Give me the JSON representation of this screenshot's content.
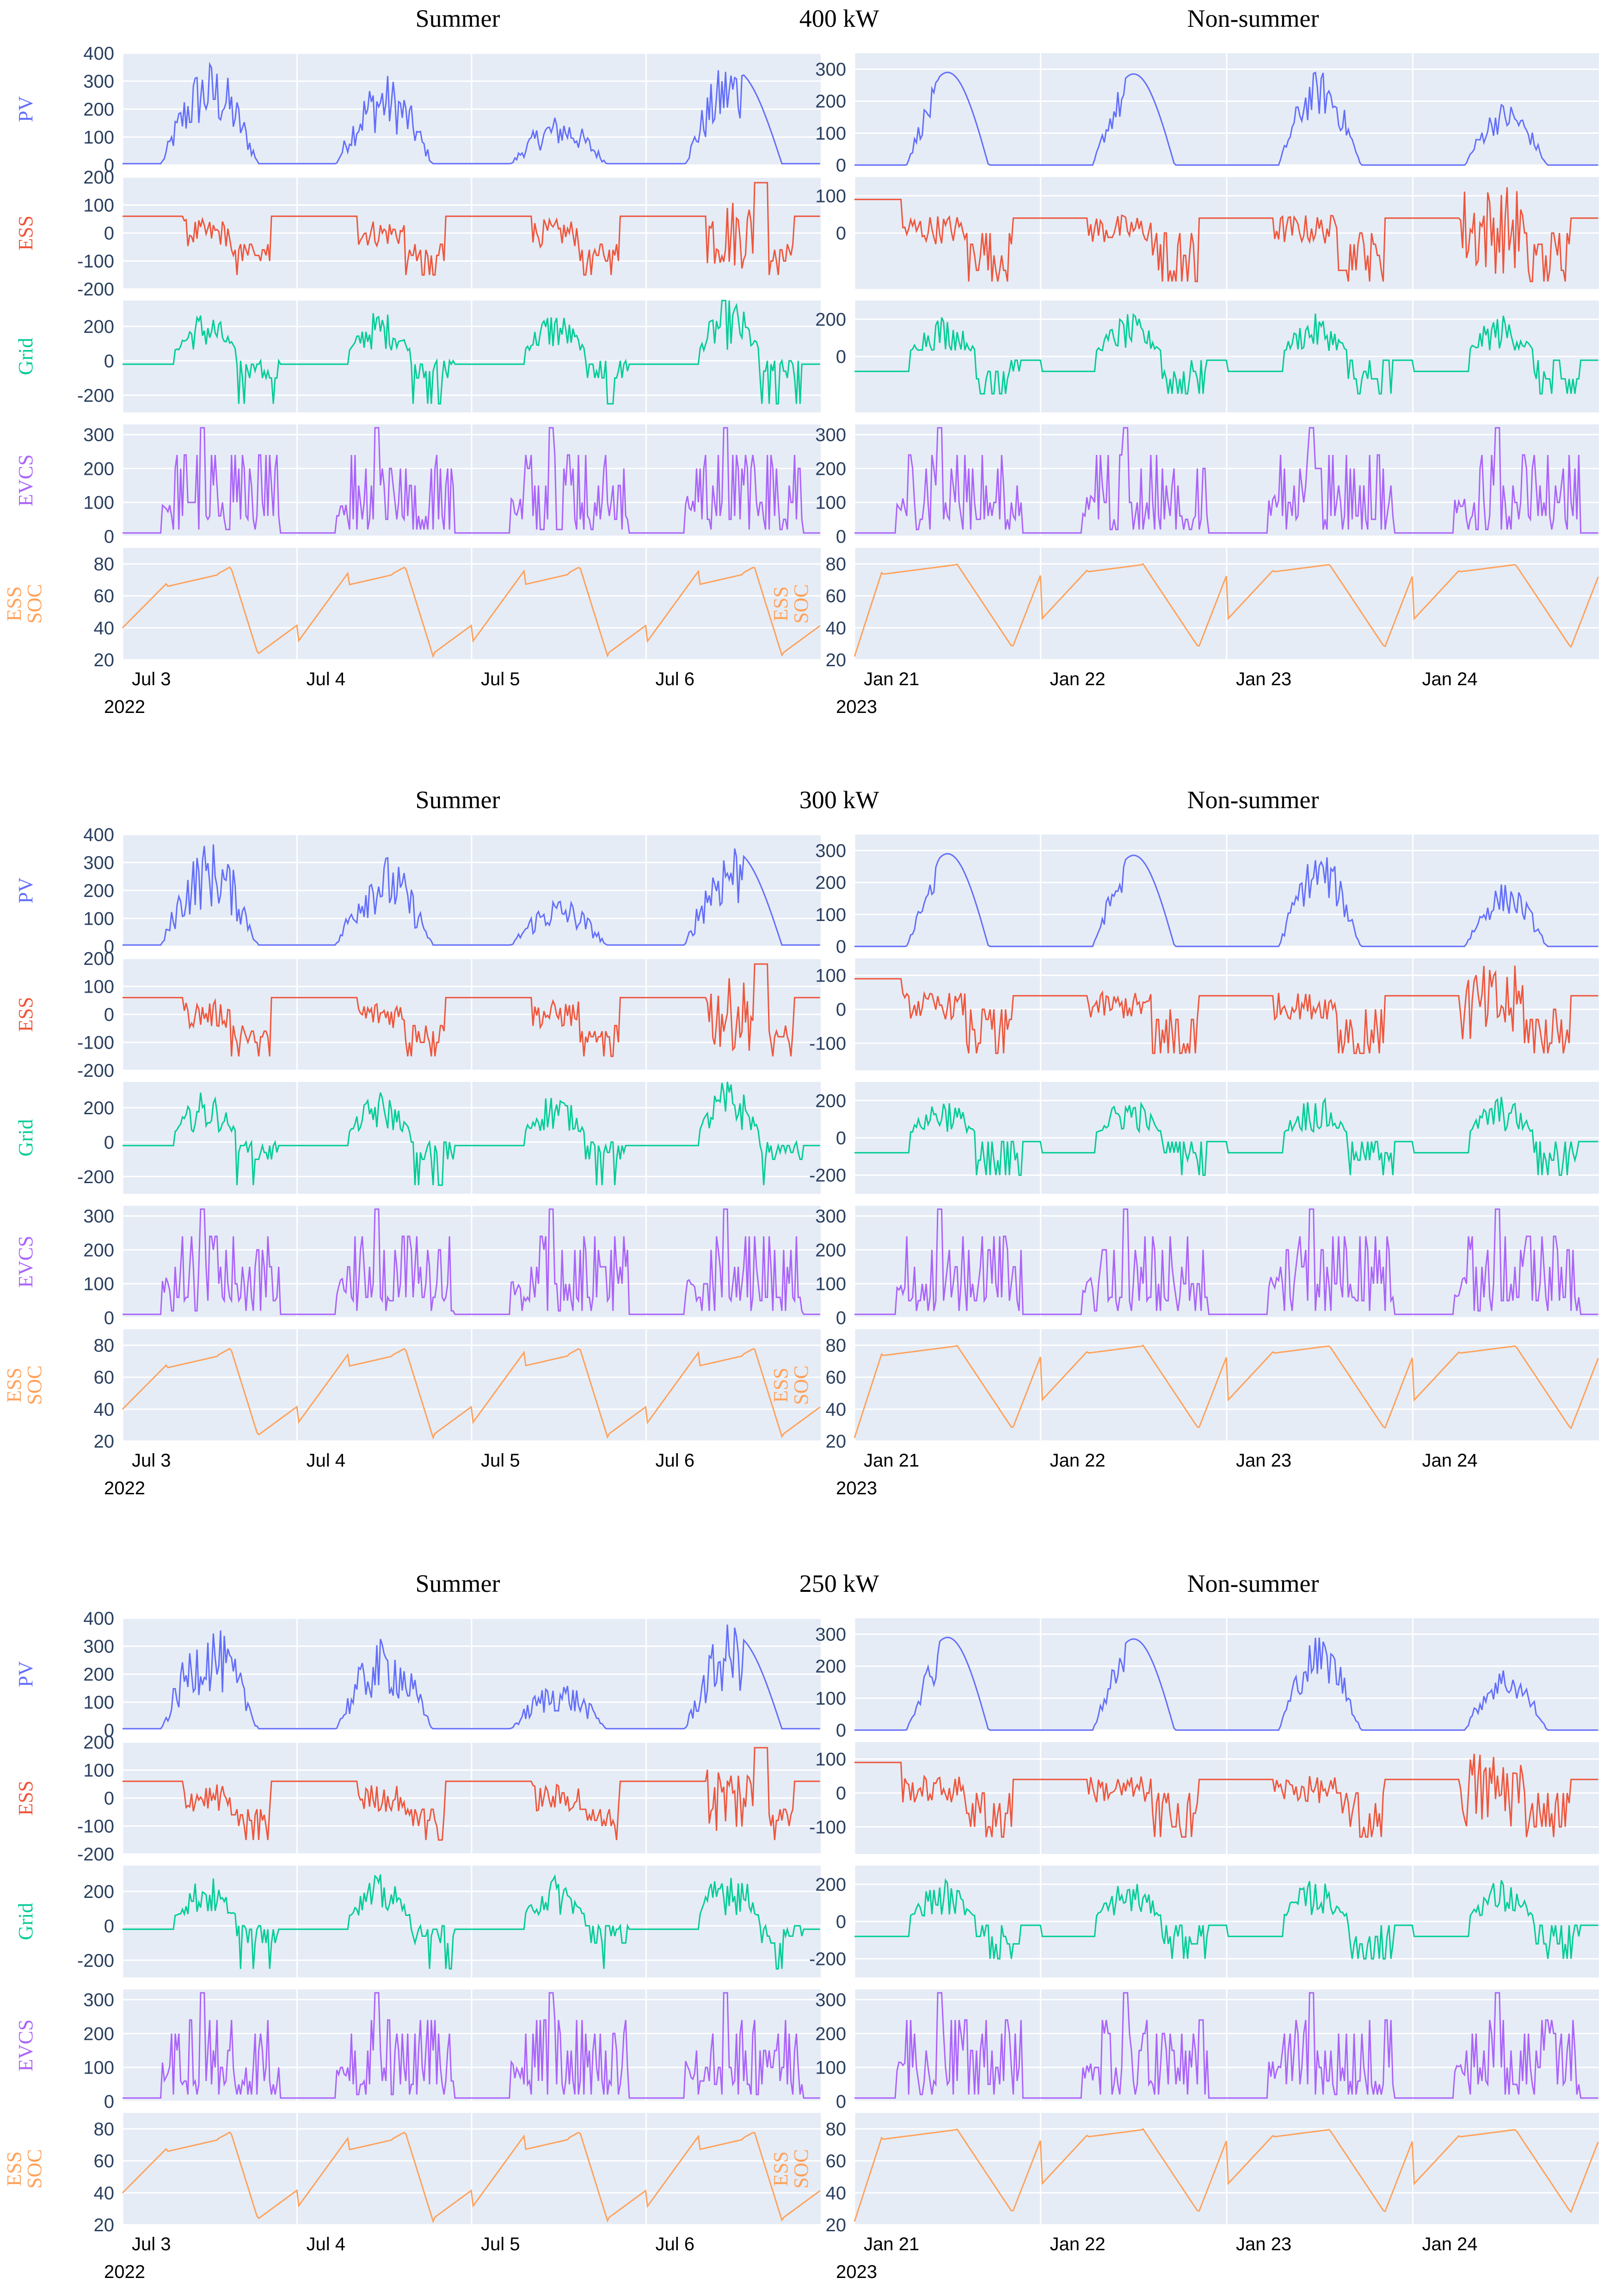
{
  "colors": {
    "PV": "#636efa",
    "ESS": "#ef553b",
    "Grid": "#00cc96",
    "EVCS": "#ab63fa",
    "ESS SOC": "#ffa15a",
    "plot_bg": "#e5ecf6",
    "grid_line": "#ffffff",
    "text": "#2a3f5f"
  },
  "chart_data": [
    {
      "type": "line",
      "block_label": "400 kW",
      "left": {
        "title": "Summer",
        "x_start_year": "2022",
        "x_ticks": [
          "Jul 3",
          "Jul 4",
          "Jul 5",
          "Jul 6"
        ],
        "panels": [
          {
            "name": "PV",
            "ylim": [
              0,
              400
            ],
            "ticks": [
              0,
              100,
              200,
              300,
              400
            ]
          },
          {
            "name": "ESS",
            "ylim": [
              -200,
              200
            ],
            "ticks": [
              -200,
              -100,
              0,
              100,
              200
            ]
          },
          {
            "name": "Grid",
            "ylim": [
              -300,
              350
            ],
            "ticks": [
              -200,
              0,
              200
            ]
          },
          {
            "name": "EVCS",
            "ylim": [
              0,
              330
            ],
            "ticks": [
              0,
              100,
              200,
              300
            ]
          },
          {
            "name": "ESS SOC",
            "ylim": [
              20,
              90
            ],
            "ticks": [
              20,
              40,
              60,
              80
            ]
          }
        ]
      },
      "right": {
        "title": "Non-summer",
        "x_start_year": "2023",
        "x_ticks": [
          "Jan 21",
          "Jan 22",
          "Jan 23",
          "Jan 24"
        ],
        "panels": [
          {
            "name": "PV",
            "ylim": [
              0,
              350
            ],
            "ticks": [
              0,
              100,
              200,
              300
            ]
          },
          {
            "name": "ESS",
            "ylim": [
              -150,
              150
            ],
            "ticks": [
              0,
              100
            ]
          },
          {
            "name": "Grid",
            "ylim": [
              -300,
              300
            ],
            "ticks": [
              0,
              200
            ]
          },
          {
            "name": "EVCS",
            "ylim": [
              0,
              330
            ],
            "ticks": [
              0,
              100,
              200,
              300
            ]
          },
          {
            "name": "ESS SOC",
            "ylim": [
              20,
              90
            ],
            "ticks": [
              20,
              40,
              60,
              80
            ]
          }
        ]
      }
    },
    {
      "type": "line",
      "block_label": "300 kW",
      "left": {
        "title": "Summer",
        "x_start_year": "2022",
        "x_ticks": [
          "Jul 3",
          "Jul 4",
          "Jul 5",
          "Jul 6"
        ],
        "panels": [
          {
            "name": "PV",
            "ylim": [
              0,
              400
            ],
            "ticks": [
              0,
              100,
              200,
              300,
              400
            ]
          },
          {
            "name": "ESS",
            "ylim": [
              -200,
              200
            ],
            "ticks": [
              -200,
              -100,
              0,
              100,
              200
            ]
          },
          {
            "name": "Grid",
            "ylim": [
              -300,
              350
            ],
            "ticks": [
              -200,
              0,
              200
            ]
          },
          {
            "name": "EVCS",
            "ylim": [
              0,
              330
            ],
            "ticks": [
              0,
              100,
              200,
              300
            ]
          },
          {
            "name": "ESS SOC",
            "ylim": [
              20,
              90
            ],
            "ticks": [
              20,
              40,
              60,
              80
            ]
          }
        ]
      },
      "right": {
        "title": "Non-summer",
        "x_start_year": "2023",
        "x_ticks": [
          "Jan 21",
          "Jan 22",
          "Jan 23",
          "Jan 24"
        ],
        "panels": [
          {
            "name": "PV",
            "ylim": [
              0,
              350
            ],
            "ticks": [
              0,
              100,
              200,
              300
            ]
          },
          {
            "name": "ESS",
            "ylim": [
              -180,
              150
            ],
            "ticks": [
              -100,
              0,
              100
            ]
          },
          {
            "name": "Grid",
            "ylim": [
              -300,
              300
            ],
            "ticks": [
              -200,
              0,
              200
            ]
          },
          {
            "name": "EVCS",
            "ylim": [
              0,
              330
            ],
            "ticks": [
              0,
              100,
              200,
              300
            ]
          },
          {
            "name": "ESS SOC",
            "ylim": [
              20,
              90
            ],
            "ticks": [
              20,
              40,
              60,
              80
            ]
          }
        ]
      }
    },
    {
      "type": "line",
      "block_label": "250 kW",
      "left": {
        "title": "Summer",
        "x_start_year": "2022",
        "x_ticks": [
          "Jul 3",
          "Jul 4",
          "Jul 5",
          "Jul 6"
        ],
        "panels": [
          {
            "name": "PV",
            "ylim": [
              0,
              400
            ],
            "ticks": [
              0,
              100,
              200,
              300,
              400
            ]
          },
          {
            "name": "ESS",
            "ylim": [
              -200,
              200
            ],
            "ticks": [
              -200,
              -100,
              0,
              100,
              200
            ]
          },
          {
            "name": "Grid",
            "ylim": [
              -300,
              350
            ],
            "ticks": [
              -200,
              0,
              200
            ]
          },
          {
            "name": "EVCS",
            "ylim": [
              0,
              330
            ],
            "ticks": [
              0,
              100,
              200,
              300
            ]
          },
          {
            "name": "ESS SOC",
            "ylim": [
              20,
              90
            ],
            "ticks": [
              20,
              40,
              60,
              80
            ]
          }
        ]
      },
      "right": {
        "title": "Non-summer",
        "x_start_year": "2023",
        "x_ticks": [
          "Jan 21",
          "Jan 22",
          "Jan 23",
          "Jan 24"
        ],
        "panels": [
          {
            "name": "PV",
            "ylim": [
              0,
              350
            ],
            "ticks": [
              0,
              100,
              200,
              300
            ]
          },
          {
            "name": "ESS",
            "ylim": [
              -180,
              150
            ],
            "ticks": [
              -100,
              0,
              100
            ]
          },
          {
            "name": "Grid",
            "ylim": [
              -300,
              300
            ],
            "ticks": [
              -200,
              0,
              200
            ]
          },
          {
            "name": "EVCS",
            "ylim": [
              0,
              330
            ],
            "ticks": [
              0,
              100,
              200,
              300
            ]
          },
          {
            "name": "ESS SOC",
            "ylim": [
              20,
              90
            ],
            "ticks": [
              20,
              40,
              60,
              80
            ]
          }
        ]
      }
    }
  ]
}
